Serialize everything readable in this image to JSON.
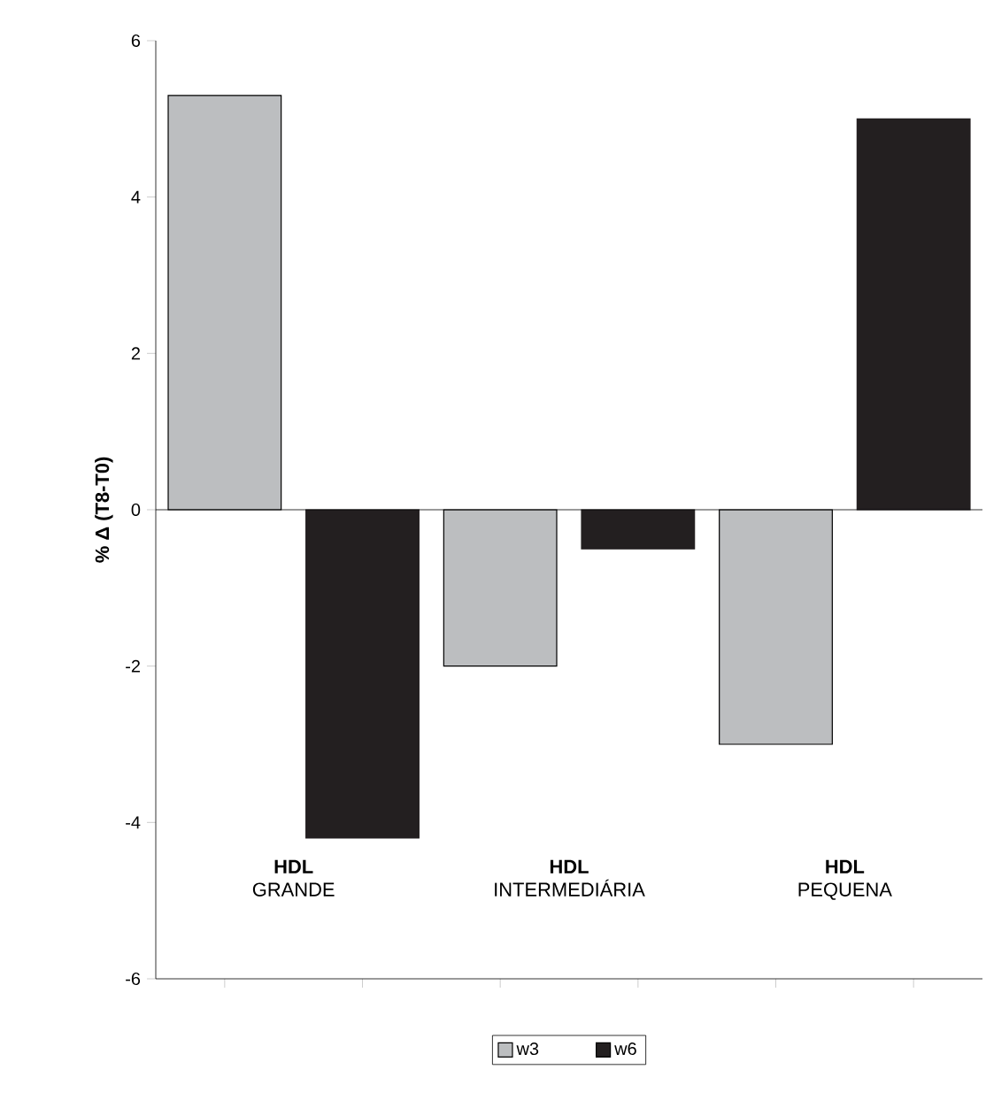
{
  "chart_data": {
    "type": "bar",
    "ylabel": "% Δ (T8-T0)",
    "categories": [
      "**HDL** GRANDE",
      "**HDL** INTERMEDIÁRIA",
      "**HDL** PEQUENA"
    ],
    "series": [
      {
        "name": "w3",
        "color": "#bcbec0",
        "values": [
          5.3,
          -2.0,
          -3.0
        ]
      },
      {
        "name": "w6",
        "color": "#231f20",
        "values": [
          -4.2,
          -0.5,
          5.0
        ]
      }
    ],
    "ylim": [
      -6,
      6
    ],
    "yticks": [
      -6,
      -4,
      -2,
      0,
      2,
      4,
      6
    ],
    "ref_lines": [
      {
        "axis": "y",
        "value": 0
      }
    ],
    "legend": "bottom",
    "grid": false
  }
}
